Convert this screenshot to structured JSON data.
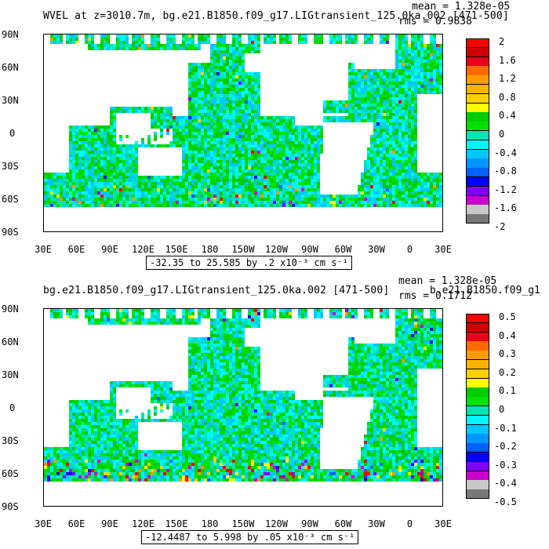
{
  "colors": [
    "#ff0000",
    "#cc0000",
    "#e8001c",
    "#ff6a00",
    "#ff9a00",
    "#ffb000",
    "#ffd000",
    "#ffff00",
    "#00cc00",
    "#00e000",
    "#00e6b0",
    "#00f5ff",
    "#00c8ff",
    "#0096ff",
    "#0060ff",
    "#0000ff",
    "#7f00ff",
    "#cc00cc",
    "#c8c8c8",
    "#787878"
  ],
  "panels": [
    {
      "title": "WVEL at z=3010.7m, bg.e21.B1850.f09_g17.LIGtransient_125.0ka.002 [471-500]",
      "mean": "mean = 1.328e-05",
      "rms": "rms = 0.9838",
      "range": "-32.35 to 25.585 by .2 x10⁻³ cm s⁻¹",
      "yticks": [
        "90N",
        "60N",
        "30N",
        "0",
        "30S",
        "60S",
        "90S"
      ],
      "xticks": [
        "30E",
        "60E",
        "90E",
        "120E",
        "150E",
        "180",
        "150W",
        "120W",
        "90W",
        "60W",
        "30W",
        "0",
        "30E"
      ],
      "cbar_labels": [
        "2",
        "1.6",
        "1.2",
        "0.8",
        "0.4",
        "0",
        "-0.4",
        "-0.8",
        "-1.2",
        "-1.6",
        "-2"
      ],
      "noise": 0.25
    },
    {
      "title": "bg.e21.B1850.f09_g17.LIGtransient_125.0ka.002 [471-500]",
      "mean": "mean = 1.328e-05",
      "rms": "rms = 0.1712",
      "overlap": "b.e21.B1850.f09_g1",
      "range": "-12.4487 to 5.998 by .05 x10⁻³ cm s⁻¹",
      "yticks": [
        "90N",
        "60N",
        "30N",
        "0",
        "30S",
        "60S",
        "90S"
      ],
      "xticks": [
        "30E",
        "60E",
        "90E",
        "120E",
        "150E",
        "180",
        "150W",
        "120W",
        "90W",
        "60W",
        "30W",
        "0",
        "30E"
      ],
      "cbar_labels": [
        "0.5",
        "0.4",
        "0.3",
        "0.2",
        "0.1",
        "0",
        "-0.1",
        "-0.2",
        "-0.3",
        "-0.4",
        "-0.5"
      ],
      "noise": 0.55
    }
  ]
}
